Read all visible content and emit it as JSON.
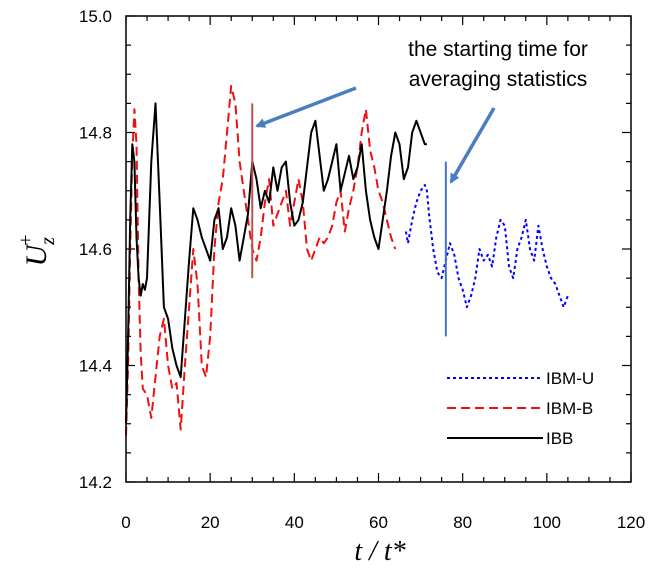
{
  "chart_data": {
    "type": "line",
    "xlabel": "t / t*",
    "ylabel": {
      "base": "U",
      "sup": "+",
      "sub": "z"
    },
    "xlim": [
      0,
      120
    ],
    "ylim": [
      14.2,
      15.0
    ],
    "xticks": [
      0,
      20,
      40,
      60,
      80,
      100,
      120
    ],
    "yticks": [
      14.2,
      14.4,
      14.6,
      14.8,
      15.0
    ],
    "xtick_labels": [
      "0",
      "20",
      "40",
      "60",
      "80",
      "100",
      "120"
    ],
    "ytick_labels": [
      "14.2",
      "14.4",
      "14.6",
      "14.8",
      "15.0"
    ],
    "grid": false,
    "legend_position": "bottom-right",
    "annotation": {
      "lines": [
        "the starting time for",
        "averaging statistics"
      ],
      "markers": [
        {
          "x": 30,
          "y_range": [
            14.55,
            14.85
          ],
          "color": "#c0504d"
        },
        {
          "x": 76,
          "y_range": [
            14.45,
            14.75
          ],
          "color": "#4472c4"
        }
      ],
      "arrow_color": "#4a7ebf"
    },
    "series": [
      {
        "name": "IBM-U",
        "color": "#0000ff",
        "dash": "dotted",
        "x": [
          66.5,
          67,
          68,
          69,
          70,
          71,
          71.5,
          72,
          73,
          74,
          75,
          76,
          77,
          78,
          79,
          80,
          81,
          82,
          83,
          84,
          85,
          86,
          87,
          88,
          89,
          90,
          91,
          92,
          93,
          94,
          95,
          96,
          97,
          98,
          99,
          100,
          101,
          102,
          103,
          104,
          105
        ],
        "y": [
          14.63,
          14.61,
          14.65,
          14.68,
          14.7,
          14.71,
          14.7,
          14.66,
          14.6,
          14.56,
          14.55,
          14.58,
          14.61,
          14.59,
          14.55,
          14.53,
          14.5,
          14.52,
          14.55,
          14.6,
          14.58,
          14.59,
          14.57,
          14.62,
          14.65,
          14.64,
          14.57,
          14.55,
          14.6,
          14.62,
          14.65,
          14.6,
          14.58,
          14.64,
          14.6,
          14.57,
          14.55,
          14.54,
          14.52,
          14.5,
          14.52
        ]
      },
      {
        "name": "IBM-B",
        "color": "#ee1111",
        "dash": "dashed",
        "x": [
          0,
          0.5,
          1,
          1.5,
          2,
          2.5,
          3,
          3.5,
          4,
          5,
          6,
          7,
          8,
          9,
          10,
          11,
          12,
          13,
          14,
          15,
          16,
          17,
          18,
          19,
          20,
          21,
          22,
          23,
          24,
          25,
          26,
          27,
          28,
          29,
          30,
          31,
          32,
          33,
          34,
          35,
          36,
          37,
          38,
          39,
          40,
          41,
          42,
          43,
          44,
          45,
          46,
          47,
          48,
          49,
          50,
          51,
          52,
          53,
          54,
          55,
          56,
          57,
          58,
          59,
          60,
          61,
          62,
          63,
          64
        ],
        "y": [
          14.28,
          14.4,
          14.6,
          14.76,
          14.84,
          14.78,
          14.55,
          14.42,
          14.36,
          14.35,
          14.31,
          14.38,
          14.45,
          14.48,
          14.4,
          14.36,
          14.37,
          14.29,
          14.4,
          14.5,
          14.6,
          14.54,
          14.4,
          14.38,
          14.45,
          14.6,
          14.68,
          14.72,
          14.8,
          14.88,
          14.85,
          14.75,
          14.7,
          14.65,
          14.6,
          14.58,
          14.62,
          14.68,
          14.72,
          14.64,
          14.66,
          14.68,
          14.7,
          14.64,
          14.68,
          14.72,
          14.68,
          14.6,
          14.58,
          14.6,
          14.62,
          14.61,
          14.62,
          14.64,
          14.68,
          14.7,
          14.63,
          14.67,
          14.7,
          14.74,
          14.8,
          14.84,
          14.77,
          14.74,
          14.7,
          14.68,
          14.65,
          14.62,
          14.6
        ]
      },
      {
        "name": "IBB",
        "color": "#000000",
        "dash": "solid",
        "x": [
          0,
          0.5,
          1,
          1.5,
          2,
          2.5,
          3,
          3.5,
          4,
          4.5,
          5,
          6,
          7,
          8,
          9,
          10,
          11,
          12,
          13,
          14,
          15,
          16,
          17,
          18,
          19,
          20,
          21,
          22,
          23,
          24,
          25,
          26,
          27,
          28,
          29,
          30,
          31,
          32,
          33,
          34,
          35,
          36,
          37,
          38,
          39,
          40,
          41,
          42,
          43,
          44,
          45,
          46,
          47,
          48,
          49,
          50,
          51,
          52,
          53,
          54,
          55,
          56,
          57,
          58,
          59,
          60,
          61,
          62,
          63,
          64,
          65,
          66,
          67,
          68,
          69,
          70,
          71,
          71.5
        ],
        "y": [
          14.3,
          14.45,
          14.65,
          14.78,
          14.75,
          14.62,
          14.55,
          14.52,
          14.54,
          14.53,
          14.55,
          14.75,
          14.85,
          14.68,
          14.5,
          14.48,
          14.43,
          14.4,
          14.38,
          14.48,
          14.58,
          14.67,
          14.65,
          14.62,
          14.6,
          14.58,
          14.65,
          14.67,
          14.6,
          14.62,
          14.67,
          14.64,
          14.58,
          14.62,
          14.66,
          14.75,
          14.72,
          14.67,
          14.7,
          14.68,
          14.74,
          14.7,
          14.74,
          14.75,
          14.68,
          14.64,
          14.65,
          14.68,
          14.74,
          14.8,
          14.82,
          14.76,
          14.7,
          14.72,
          14.75,
          14.78,
          14.7,
          14.73,
          14.76,
          14.72,
          14.74,
          14.78,
          14.7,
          14.65,
          14.62,
          14.6,
          14.65,
          14.7,
          14.76,
          14.8,
          14.78,
          14.72,
          14.74,
          14.8,
          14.82,
          14.8,
          14.78,
          14.78
        ]
      }
    ]
  }
}
